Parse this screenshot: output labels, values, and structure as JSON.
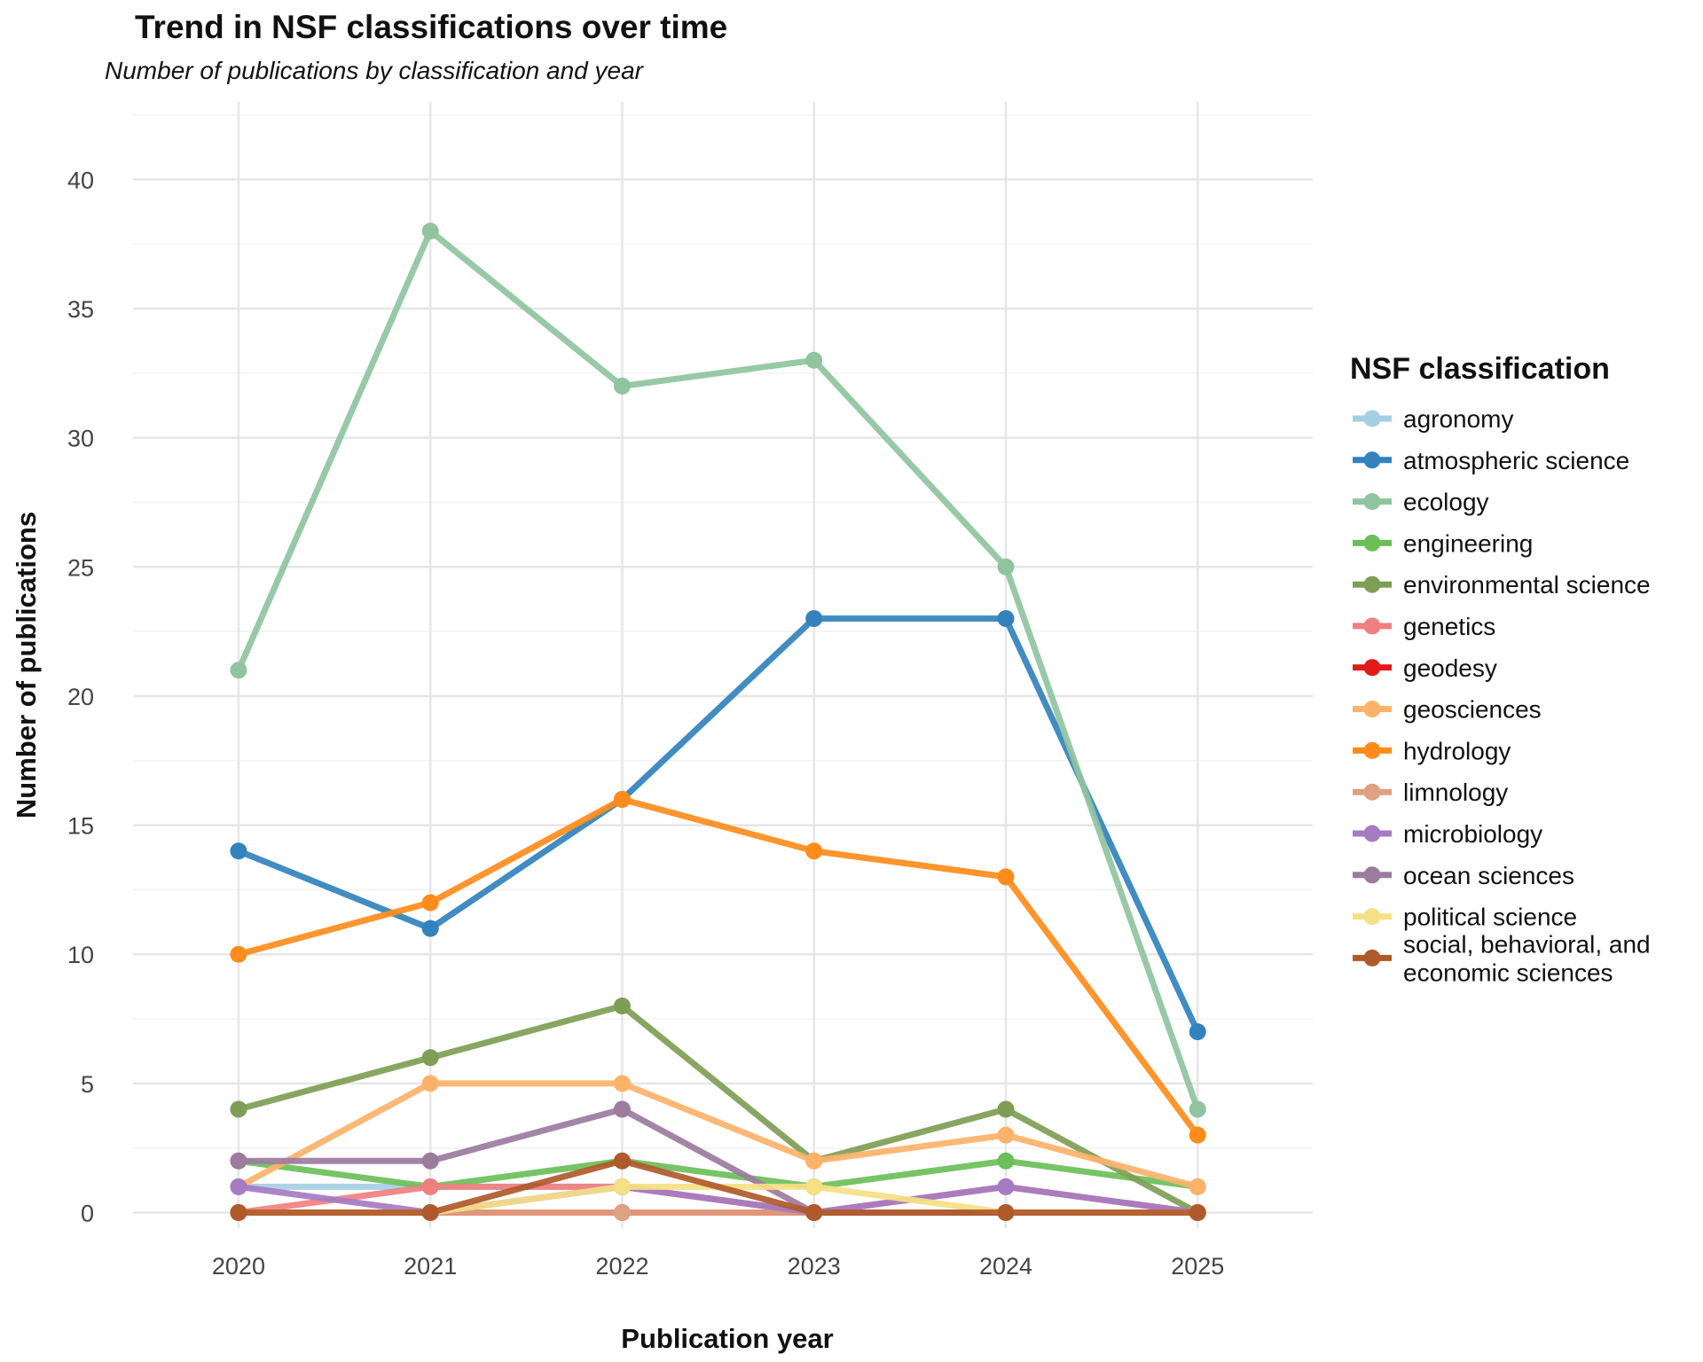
{
  "chart_data": {
    "type": "line",
    "title": "Trend in NSF classifications over time",
    "subtitle": "Number of publications by classification and year",
    "xlabel": "Publication year",
    "ylabel": "Number of publications",
    "x": [
      2020,
      2021,
      2022,
      2023,
      2024,
      2025
    ],
    "x_ticks": [
      "2020",
      "2021",
      "2022",
      "2023",
      "2024",
      "2025"
    ],
    "y_ticks": [
      0,
      5,
      10,
      15,
      20,
      25,
      30,
      35,
      40
    ],
    "xlim": [
      2019.45,
      2025.6
    ],
    "ylim": [
      -0.6,
      43
    ],
    "grid": true,
    "legend_title": "NSF classification",
    "legend_position": "right",
    "series": [
      {
        "name": "agronomy",
        "color": "#a6cee3",
        "values": [
          1,
          1,
          1,
          0,
          0,
          0
        ]
      },
      {
        "name": "atmospheric science",
        "color": "#3182bd",
        "values": [
          14,
          11,
          16,
          23,
          23,
          7
        ]
      },
      {
        "name": "ecology",
        "color": "#8fc49e",
        "values": [
          21,
          38,
          32,
          33,
          25,
          4
        ]
      },
      {
        "name": "engineering",
        "color": "#6abf59",
        "values": [
          2,
          1,
          2,
          1,
          2,
          1
        ]
      },
      {
        "name": "environmental science",
        "color": "#7e9e55",
        "values": [
          4,
          6,
          8,
          2,
          4,
          0
        ]
      },
      {
        "name": "genetics",
        "color": "#f08080",
        "values": [
          0,
          1,
          1,
          0,
          1,
          0
        ]
      },
      {
        "name": "geodesy",
        "color": "#e31a1c",
        "values": [
          0,
          0,
          0,
          0,
          0,
          0
        ]
      },
      {
        "name": "geosciences",
        "color": "#fdb26a",
        "values": [
          1,
          5,
          5,
          2,
          3,
          1
        ]
      },
      {
        "name": "hydrology",
        "color": "#ff8c1a",
        "values": [
          10,
          12,
          16,
          14,
          13,
          3
        ]
      },
      {
        "name": "limnology",
        "color": "#e0a082",
        "values": [
          0,
          0,
          0,
          0,
          0,
          0
        ]
      },
      {
        "name": "microbiology",
        "color": "#a57bc1",
        "values": [
          1,
          0,
          1,
          0,
          1,
          0
        ]
      },
      {
        "name": "ocean sciences",
        "color": "#9b7b9e",
        "values": [
          2,
          2,
          4,
          0,
          0,
          0
        ]
      },
      {
        "name": "political science",
        "color": "#f5e084",
        "values": [
          0,
          0,
          1,
          1,
          0,
          0
        ]
      },
      {
        "name": "social, behavioral, and economic sciences",
        "color": "#b0592a",
        "values": [
          0,
          0,
          2,
          0,
          0,
          0
        ]
      }
    ],
    "legend_labels": [
      [
        "agronomy"
      ],
      [
        "atmospheric science"
      ],
      [
        "ecology"
      ],
      [
        "engineering"
      ],
      [
        "environmental science"
      ],
      [
        "genetics"
      ],
      [
        "geodesy"
      ],
      [
        "geosciences"
      ],
      [
        "hydrology"
      ],
      [
        "limnology"
      ],
      [
        "microbiology"
      ],
      [
        "ocean sciences"
      ],
      [
        "political science"
      ],
      [
        "social, behavioral, and",
        "economic sciences"
      ]
    ]
  }
}
